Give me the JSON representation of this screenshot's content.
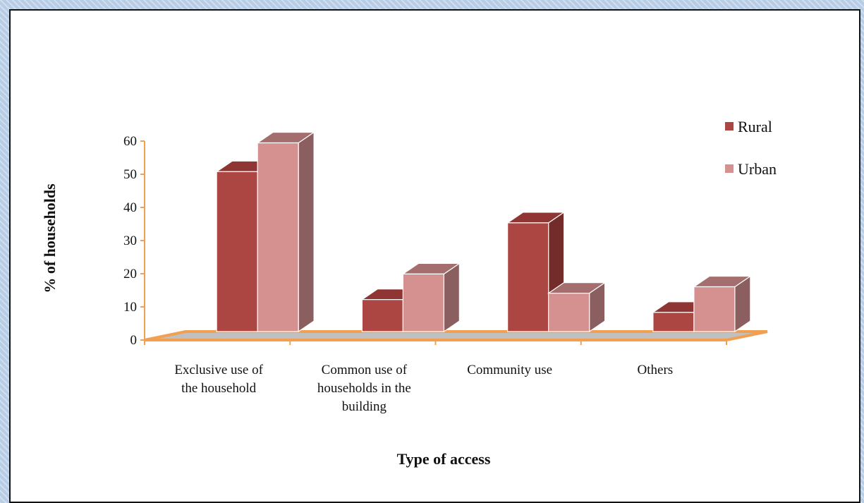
{
  "chart_data": {
    "type": "bar",
    "categories": [
      [
        "Exclusive use of",
        "the household"
      ],
      [
        "Common use of",
        "households in the",
        "building"
      ],
      [
        "Community use"
      ],
      [
        "Others"
      ]
    ],
    "series": [
      {
        "name": "Rural",
        "values": [
          50,
          10,
          34,
          6
        ],
        "color": "#ab4642",
        "side_color": "#742c2a",
        "top_color": "#8f3533"
      },
      {
        "name": "Urban",
        "values": [
          59,
          18,
          12,
          14
        ],
        "color": "#d49190",
        "side_color": "#8b5e5f",
        "top_color": "#a46e6e"
      }
    ],
    "xlabel": "Type of access",
    "ylabel": "% of households",
    "ylim": [
      0,
      60
    ],
    "yticks": [
      0,
      10,
      20,
      30,
      40,
      50,
      60
    ],
    "legend_position": "right",
    "floor_color": "#c0c0c0",
    "axis_color": "#f0a050"
  }
}
